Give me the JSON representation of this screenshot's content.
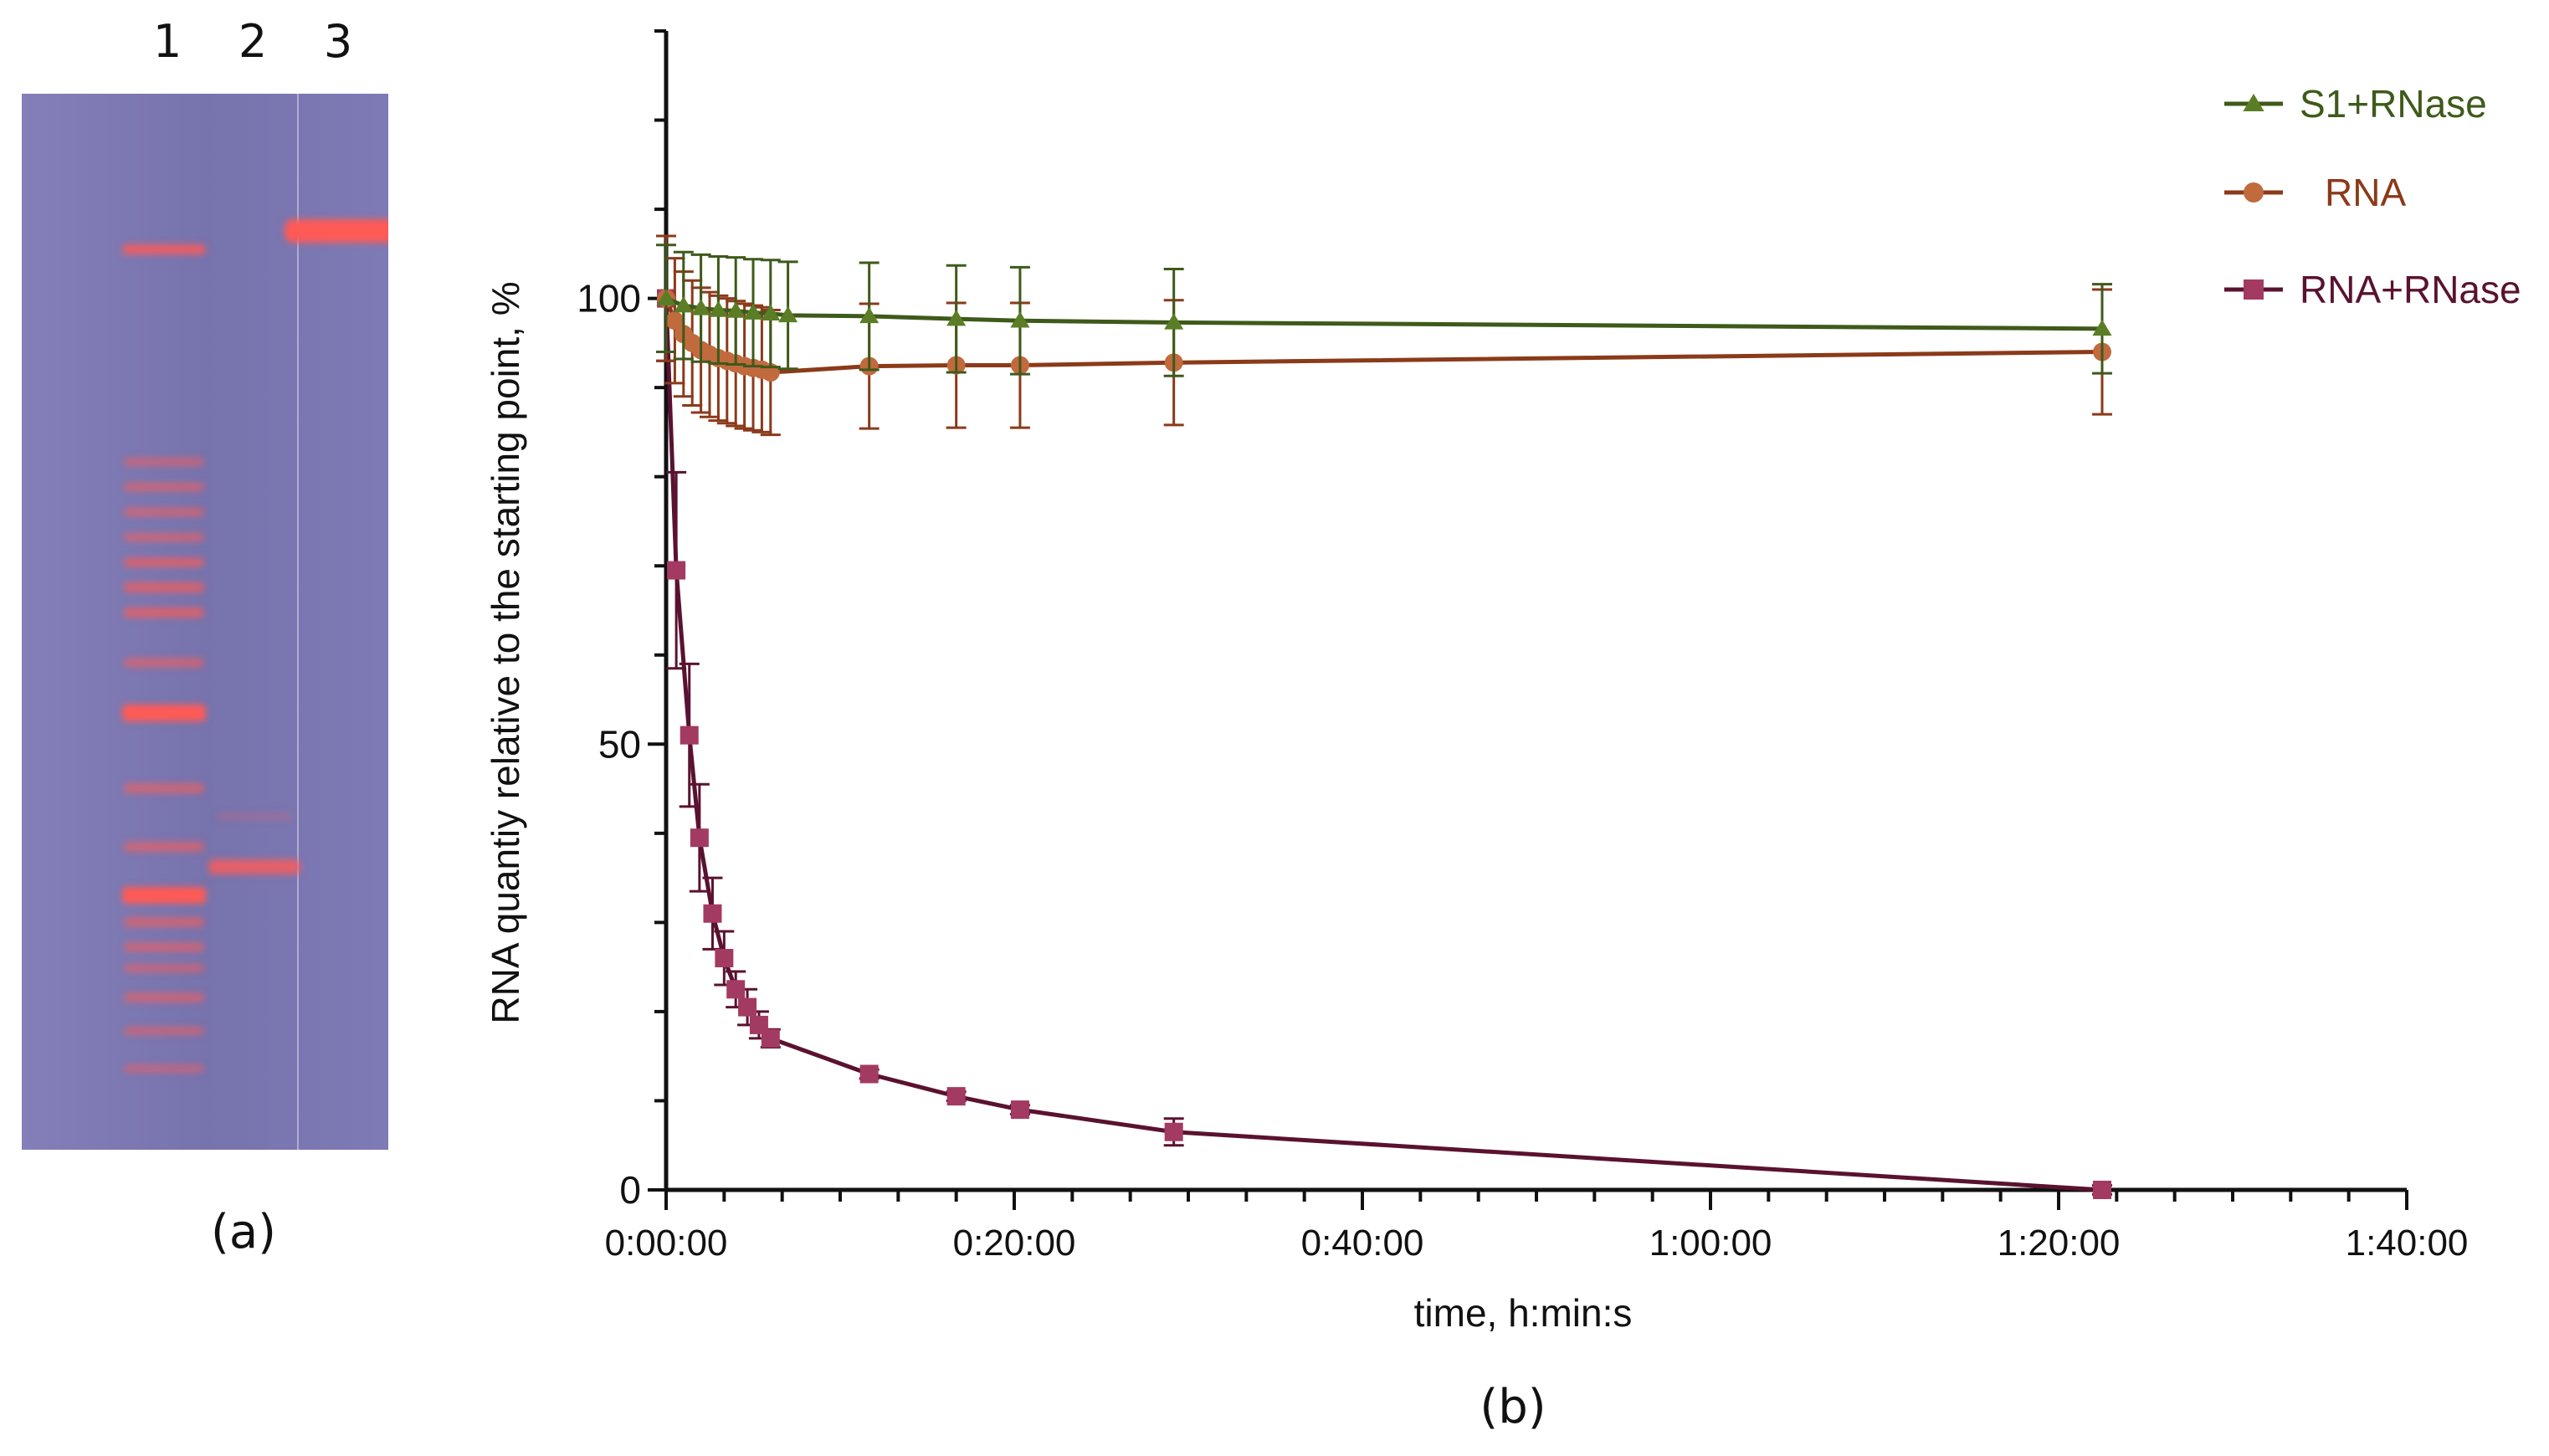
{
  "gel": {
    "lane_labels": [
      "1",
      "2",
      "3"
    ],
    "panel_label": "(a)",
    "background_color": "#7a76b0",
    "band_color": "#ff5a55"
  },
  "panel_b_label": "(b)",
  "chart_data": {
    "type": "line",
    "xlabel": "time, h:min:s",
    "ylabel": "RNA quantiy relative to the starting point, %",
    "xlim_seconds": [
      0,
      6000
    ],
    "x_tick_seconds": [
      0,
      1200,
      2400,
      3600,
      4800,
      6000
    ],
    "x_tick_labels": [
      "0:00:00",
      "0:20:00",
      "0:40:00",
      "1:00:00",
      "1:20:00",
      "1:40:00"
    ],
    "ylim": [
      0,
      130
    ],
    "y_tick_values": [
      0,
      50,
      100
    ],
    "y_tick_labels": [
      "0",
      "50",
      "100"
    ],
    "legend_position": "top-right",
    "series": [
      {
        "name": "S1+RNase",
        "color": "#3e5a1a",
        "marker_color": "#5a7d25",
        "marker": "triangle",
        "x_seconds": [
          0,
          60,
          120,
          180,
          240,
          300,
          360,
          420,
          700,
          1000,
          1220,
          1750,
          4950
        ],
        "y": [
          100,
          99.2,
          98.9,
          98.7,
          98.6,
          98.4,
          98.3,
          98.1,
          98.0,
          97.7,
          97.5,
          97.3,
          96.6
        ],
        "err": [
          6,
          6,
          6,
          6,
          6,
          6,
          6,
          6,
          6,
          6,
          6,
          6,
          5
        ]
      },
      {
        "name": "RNA",
        "color": "#8b3a1a",
        "marker_color": "#c16a3e",
        "marker": "circle",
        "x_seconds": [
          0,
          30,
          60,
          90,
          120,
          150,
          180,
          210,
          240,
          270,
          300,
          330,
          360,
          700,
          1000,
          1220,
          1750,
          4950
        ],
        "y": [
          100,
          97.5,
          96.0,
          95.0,
          94.2,
          93.7,
          93.3,
          93.0,
          92.7,
          92.4,
          92.2,
          92.0,
          91.7,
          92.4,
          92.5,
          92.5,
          92.8,
          94.0
        ],
        "err": [
          7,
          7,
          7,
          7,
          7,
          7,
          7,
          7,
          7,
          7,
          7,
          7,
          7,
          7,
          7,
          7,
          7,
          7
        ]
      },
      {
        "name": "RNA+RNase",
        "color": "#5a1230",
        "marker_color": "#a33a62",
        "marker": "square",
        "x_seconds": [
          0,
          35,
          80,
          115,
          160,
          200,
          240,
          280,
          320,
          360,
          700,
          1000,
          1220,
          1750,
          4950
        ],
        "y": [
          100,
          69.5,
          51,
          39.5,
          31,
          26,
          22.5,
          20.5,
          18.5,
          17,
          13,
          10.5,
          9,
          6.5,
          0
        ],
        "err": [
          7,
          11,
          8,
          6,
          4,
          3,
          2,
          2,
          1.5,
          1,
          0.5,
          0.5,
          0.5,
          1.5,
          0.5
        ]
      }
    ]
  }
}
